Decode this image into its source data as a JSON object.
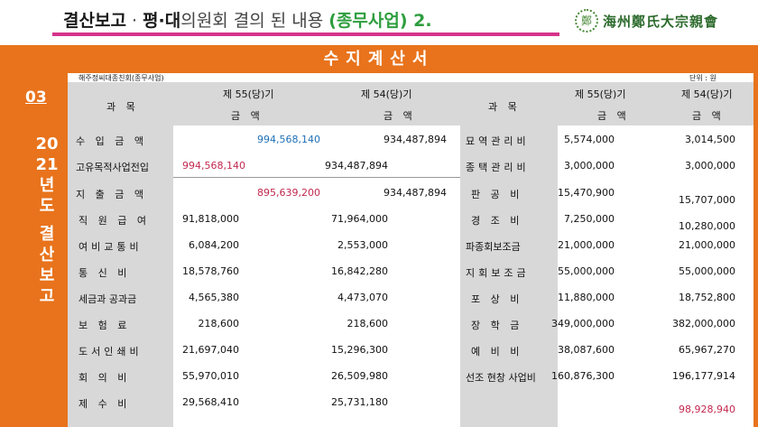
{
  "header": {
    "title_part1": "결산보고",
    "title_dot": " · ",
    "title_part2": "평·대",
    "title_part3": "의원회 결의 된 내용 ",
    "title_part4": "(종무사업) 2.",
    "logo_seal": "鄭",
    "logo_text": "海州鄭氏大宗親會"
  },
  "document": {
    "title": "수지계산서",
    "org_name": "해주정씨대종친회(종무사업)",
    "unit": "단위 : 원"
  },
  "sidebar": {
    "number": "03",
    "vertical": [
      "20",
      "21",
      "년",
      "도",
      "",
      "결",
      "산",
      "보",
      "고"
    ]
  },
  "columns": {
    "item": "과 목",
    "current": "제 55(당)기",
    "previous": "제 54(당)기",
    "amount": "금 액"
  },
  "left_rows": [
    {
      "label": "수 입 금 액",
      "c55_mid": "",
      "c55": "994,568,140",
      "c54_mid": "",
      "c54": "934,487,894"
    },
    {
      "label": "고유목적사업전입",
      "c55_mid": "994,568,140",
      "c55": "",
      "c54_mid": "934,487,894",
      "c54": ""
    },
    {
      "label": "지 출 금 액",
      "c55_mid": "",
      "c55": "895,639,200",
      "c54_mid": "",
      "c54": "934,487,894"
    },
    {
      "label": "직 원 급 여",
      "c55_mid": "91,818,000",
      "c55": "",
      "c54_mid": "71,964,000",
      "c54": ""
    },
    {
      "label": "여비교통비",
      "c55_mid": "6,084,200",
      "c55": "",
      "c54_mid": "2,553,000",
      "c54": ""
    },
    {
      "label": "통 신 비",
      "c55_mid": "18,578,760",
      "c55": "",
      "c54_mid": "16,842,280",
      "c54": ""
    },
    {
      "label": "세금과 공과금",
      "c55_mid": "4,565,380",
      "c55": "",
      "c54_mid": "4,473,070",
      "c54": ""
    },
    {
      "label": "보 험 료",
      "c55_mid": "218,600",
      "c55": "",
      "c54_mid": "218,600",
      "c54": ""
    },
    {
      "label": "도서인쇄비",
      "c55_mid": "21,697,040",
      "c55": "",
      "c54_mid": "15,296,300",
      "c54": ""
    },
    {
      "label": "회 의 비",
      "c55_mid": "55,970,010",
      "c55": "",
      "c54_mid": "26,509,980",
      "c54": ""
    },
    {
      "label": "제 수 비",
      "c55_mid": "29,568,410",
      "c55": "",
      "c54_mid": "25,731,180",
      "c54": ""
    }
  ],
  "right_rows": [
    {
      "label": "묘역관리비",
      "c55": "5,574,000",
      "c54": "3,014,500"
    },
    {
      "label": "종택관리비",
      "c55": "3,000,000",
      "c54": "3,000,000"
    },
    {
      "label": "판 공 비",
      "c55": "15,470,900",
      "c54": "15,707,000"
    },
    {
      "label": "경 조 비",
      "c55": "7,250,000",
      "c54": "10,280,000"
    },
    {
      "label": "파종회보조금",
      "c55": "21,000,000",
      "c54": "21,000,000"
    },
    {
      "label": "지회보조금",
      "c55": "55,000,000",
      "c54": "55,000,000"
    },
    {
      "label": "포 상 비",
      "c55": "11,880,000",
      "c54": "18,752,800"
    },
    {
      "label": "장 학 금",
      "c55": "349,000,000",
      "c54": "382,000,000"
    },
    {
      "label": "예 비 비",
      "c55": "38,087,600",
      "c54": "65,967,270"
    },
    {
      "label": "선조 현창 사업비",
      "c55": "160,876,300",
      "c54": "196,177,914"
    },
    {
      "label": "",
      "c55": "",
      "c54": "98,928,940"
    }
  ],
  "colors": {
    "accent": "#e8731c",
    "underline": "#d6338a",
    "blue": "#1e70b8",
    "red": "#c2284f",
    "green": "#2e9e3e"
  }
}
